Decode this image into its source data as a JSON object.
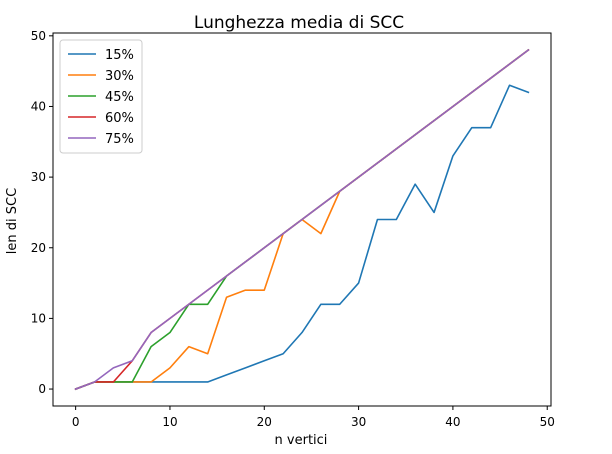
{
  "chart_data": {
    "type": "line",
    "title": "Lunghezza media di SCC",
    "xlabel": "n vertici",
    "ylabel": "len di SCC",
    "xlim": [
      -2.4,
      50.4
    ],
    "ylim": [
      -2.4,
      50.4
    ],
    "xticks": [
      0,
      10,
      20,
      30,
      40,
      50
    ],
    "yticks": [
      0,
      10,
      20,
      30,
      40,
      50
    ],
    "grid": false,
    "legend_position": "top-left",
    "x": [
      0,
      2,
      4,
      6,
      8,
      10,
      12,
      14,
      16,
      18,
      20,
      22,
      24,
      26,
      28,
      30,
      32,
      34,
      36,
      38,
      40,
      42,
      44,
      46,
      48
    ],
    "series": [
      {
        "name": "15%",
        "color": "#1f77b4",
        "values": [
          0,
          1,
          1,
          1,
          1,
          1,
          1,
          1,
          2,
          3,
          4,
          5,
          8,
          12,
          12,
          15,
          24,
          24,
          29,
          25,
          33,
          37,
          37,
          43,
          42
        ]
      },
      {
        "name": "30%",
        "color": "#ff7f0e",
        "values": [
          0,
          1,
          1,
          1,
          1,
          3,
          6,
          5,
          13,
          14,
          14,
          22,
          24,
          22,
          28,
          30,
          32,
          34,
          36,
          38,
          40,
          42,
          44,
          46,
          48
        ]
      },
      {
        "name": "45%",
        "color": "#2ca02c",
        "values": [
          0,
          1,
          1,
          1,
          6,
          8,
          12,
          12,
          16,
          18,
          20,
          22,
          24,
          26,
          28,
          30,
          32,
          34,
          36,
          38,
          40,
          42,
          44,
          46,
          48
        ]
      },
      {
        "name": "60%",
        "color": "#d62728",
        "values": [
          0,
          1,
          1,
          4,
          8,
          10,
          12,
          14,
          16,
          18,
          20,
          22,
          24,
          26,
          28,
          30,
          32,
          34,
          36,
          38,
          40,
          42,
          44,
          46,
          48
        ]
      },
      {
        "name": "75%",
        "color": "#9467bd",
        "values": [
          0,
          1,
          3,
          4,
          8,
          10,
          12,
          14,
          16,
          18,
          20,
          22,
          24,
          26,
          28,
          30,
          32,
          34,
          36,
          38,
          40,
          42,
          44,
          46,
          48
        ]
      }
    ]
  }
}
